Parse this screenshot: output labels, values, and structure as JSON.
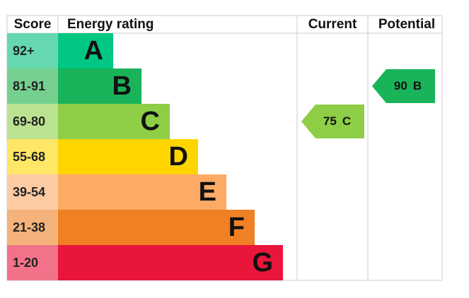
{
  "header": {
    "score": "Score",
    "rating": "Energy rating",
    "current": "Current",
    "potential": "Potential"
  },
  "bands": [
    {
      "score": "92+",
      "letter": "A",
      "color": "#00c781",
      "light": "#66d8b0"
    },
    {
      "score": "81-91",
      "letter": "B",
      "color": "#19b459",
      "light": "#75d08f"
    },
    {
      "score": "69-80",
      "letter": "C",
      "color": "#8dce46",
      "light": "#bbe291"
    },
    {
      "score": "55-68",
      "letter": "D",
      "color": "#ffd500",
      "light": "#ffe666"
    },
    {
      "score": "39-54",
      "letter": "E",
      "color": "#fcaa65",
      "light": "#fdcba3"
    },
    {
      "score": "21-38",
      "letter": "F",
      "color": "#ef8023",
      "light": "#f5b37b"
    },
    {
      "score": "1-20",
      "letter": "G",
      "color": "#e9153b",
      "light": "#f27389"
    }
  ],
  "current": {
    "value": 75,
    "band": "C"
  },
  "potential": {
    "value": 90,
    "band": "B"
  }
}
